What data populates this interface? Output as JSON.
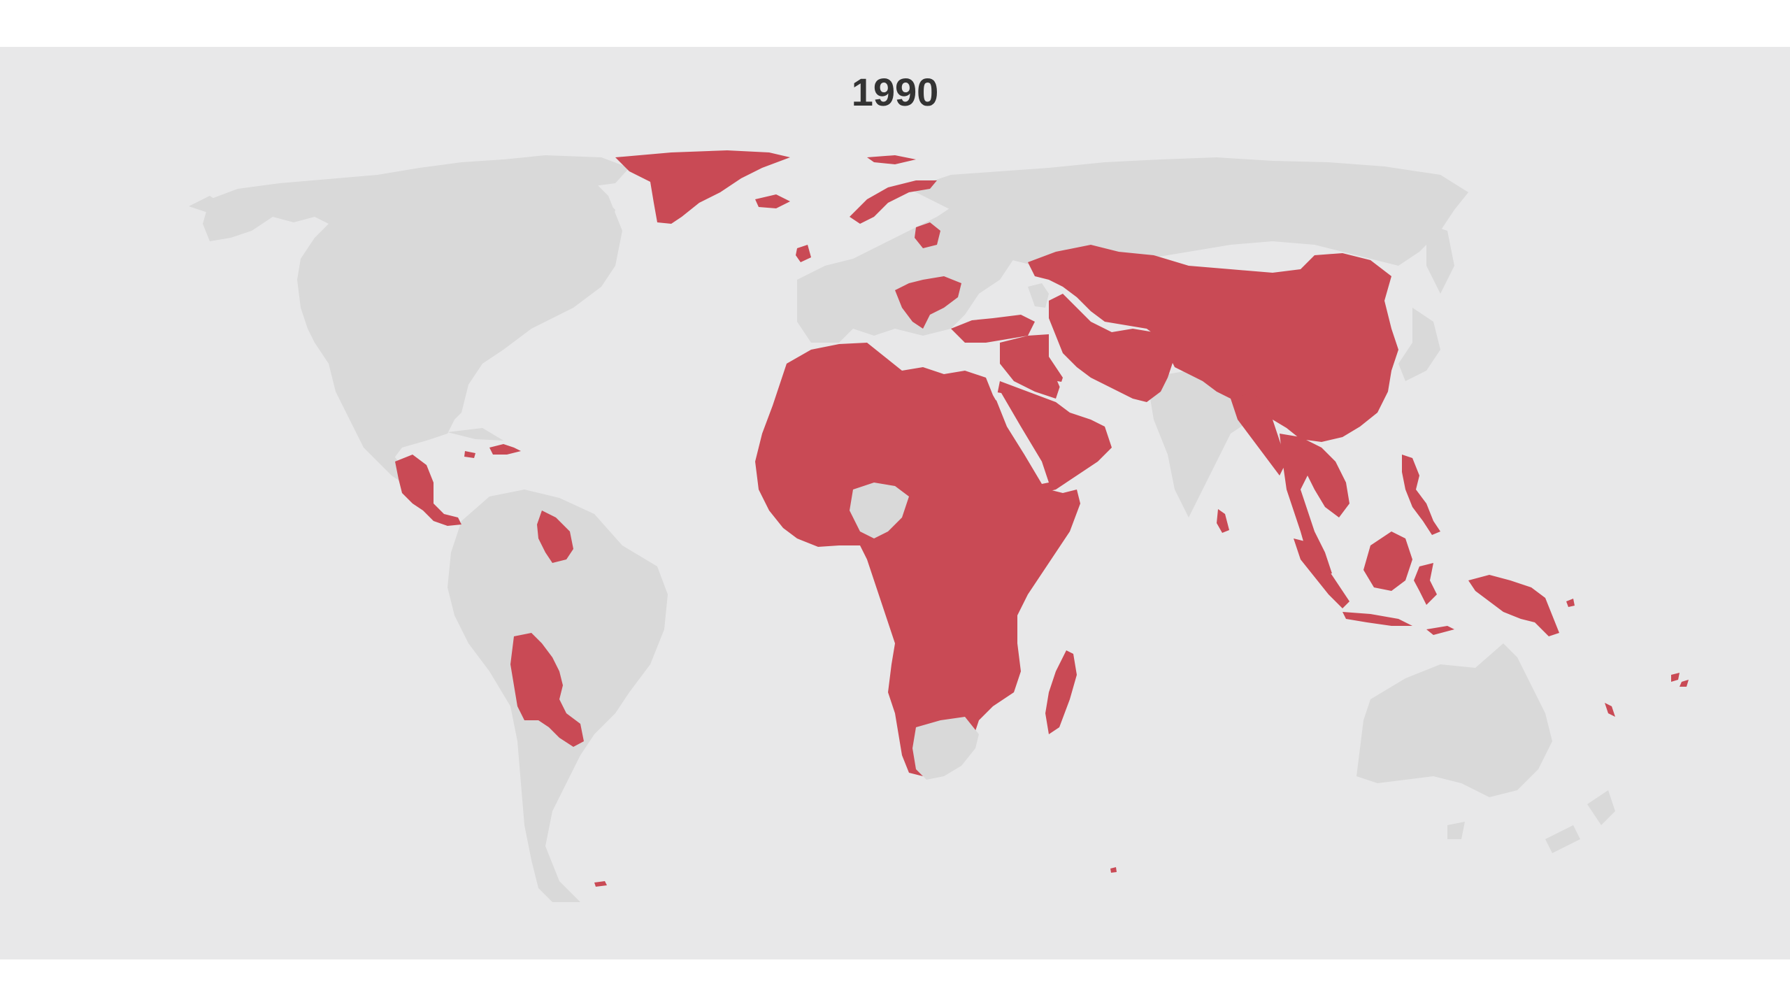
{
  "title": "1990",
  "colors": {
    "background": "#ffffff",
    "map_background": "#e8e8e9",
    "land": "#d9d9d9",
    "highlight": "#c94a55",
    "title_text": "#333333"
  },
  "highlighted_regions": [
    "greenland",
    "svalbard",
    "iceland",
    "scandinavia-north",
    "baltic-belarus",
    "ireland",
    "balkans",
    "turkey",
    "middle-east",
    "arabian-peninsula",
    "iran-afghanistan-pakistan",
    "central-asia-china-mongolia",
    "bangladesh-myanmar",
    "southeast-asia",
    "sri-lanka",
    "philippines",
    "indonesia",
    "new-guinea",
    "africa",
    "madagascar",
    "central-america",
    "caribbean",
    "guyana",
    "bolivia-paraguay",
    "pacific-islands"
  ]
}
